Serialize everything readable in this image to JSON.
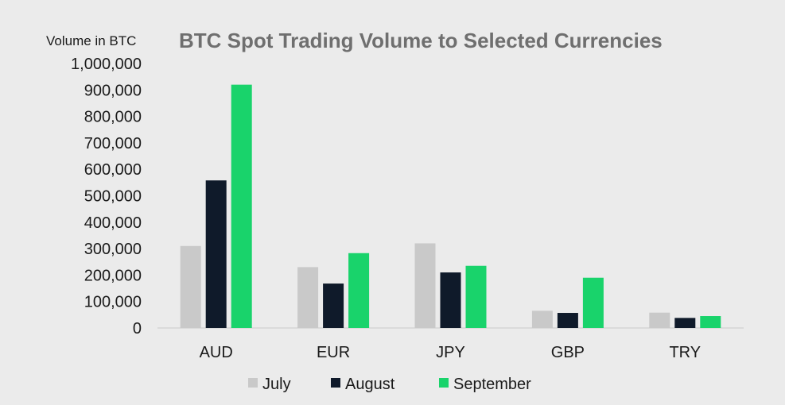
{
  "chart_data": {
    "type": "bar",
    "title": "BTC Spot Trading Volume to Selected Currencies",
    "ylabel": "Volume in BTC",
    "xlabel": "",
    "categories": [
      "AUD",
      "EUR",
      "JPY",
      "GBP",
      "TRY"
    ],
    "series": [
      {
        "name": "July",
        "color": "#c9c9c9",
        "values": [
          310000,
          230000,
          320000,
          65000,
          58000
        ]
      },
      {
        "name": "August",
        "color": "#0f1a2a",
        "values": [
          558000,
          168000,
          210000,
          57000,
          38000
        ]
      },
      {
        "name": "September",
        "color": "#19d36b",
        "values": [
          920000,
          283000,
          235000,
          190000,
          45000
        ]
      }
    ],
    "ylim": [
      0,
      1000000
    ],
    "yticks": [
      0,
      100000,
      200000,
      300000,
      400000,
      500000,
      600000,
      700000,
      800000,
      900000,
      1000000
    ],
    "ytick_labels": [
      "0",
      "100,000",
      "200,000",
      "300,000",
      "400,000",
      "500,000",
      "600,000",
      "700,000",
      "800,000",
      "900,000",
      "1,000,000"
    ],
    "grid": false,
    "legend_position": "bottom"
  }
}
